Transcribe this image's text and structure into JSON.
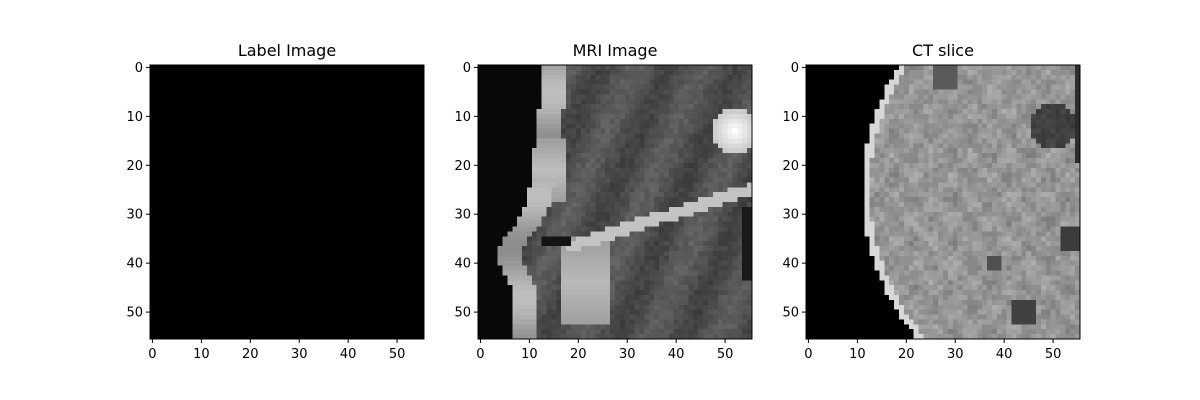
{
  "chart_data": [
    {
      "type": "heatmap",
      "title": "Label Image",
      "colormap": "gray",
      "image_size": [
        56,
        56
      ],
      "xticks": [
        "0",
        "10",
        "20",
        "30",
        "40",
        "50"
      ],
      "yticks": [
        "0",
        "10",
        "20",
        "30",
        "40",
        "50"
      ],
      "xlim": [
        -0.5,
        55.5
      ],
      "ylim": [
        55.5,
        -0.5
      ],
      "content": "uniform",
      "fill_value": 0
    },
    {
      "type": "heatmap",
      "title": "MRI Image",
      "colormap": "gray",
      "image_size": [
        56,
        56
      ],
      "xticks": [
        "0",
        "10",
        "20",
        "30",
        "40",
        "50"
      ],
      "yticks": [
        "0",
        "10",
        "20",
        "30",
        "40",
        "50"
      ],
      "xlim": [
        -0.5,
        55.5
      ],
      "ylim": [
        55.5,
        -0.5
      ],
      "content": "mri"
    },
    {
      "type": "heatmap",
      "title": "CT slice",
      "colormap": "gray",
      "image_size": [
        56,
        56
      ],
      "xticks": [
        "0",
        "10",
        "20",
        "30",
        "40",
        "50"
      ],
      "yticks": [
        "0",
        "10",
        "20",
        "30",
        "40",
        "50"
      ],
      "xlim": [
        -0.5,
        55.5
      ],
      "ylim": [
        55.5,
        -0.5
      ],
      "content": "ct"
    }
  ]
}
